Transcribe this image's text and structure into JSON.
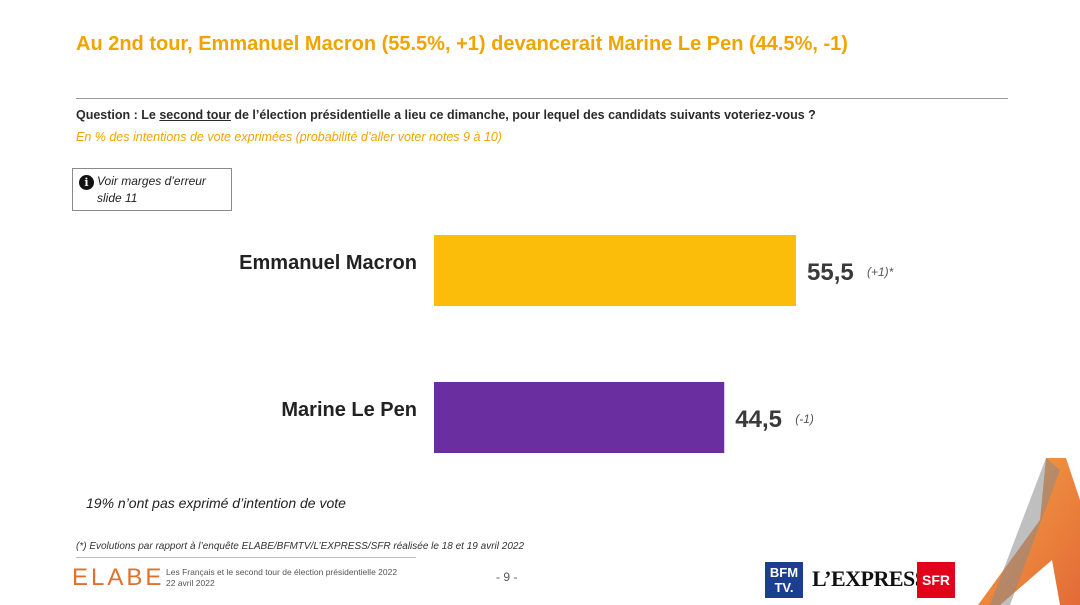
{
  "title": "Au 2nd tour, Emmanuel Macron (55.5%, +1) devancerait Marine Le Pen (44.5%, -1)",
  "question": {
    "prefix": "Question : Le ",
    "underlined": "second tour",
    "suffix": " de l’élection présidentielle a lieu ce dimanche, pour lequel des candidats suivants voteriez-vous ?",
    "subtitle": "En % des intentions de vote exprimées (probabilité d’aller voter notes 9 à 10)"
  },
  "note": {
    "icon": "info-icon",
    "line1": "Voir marges d’erreur",
    "line2": "slide 11"
  },
  "chart_data": {
    "type": "bar",
    "orientation": "horizontal",
    "categories": [
      "Emmanuel Macron",
      "Marine Le Pen"
    ],
    "values": [
      55.5,
      44.5
    ],
    "value_labels": [
      "55,5",
      "44,5"
    ],
    "evolutions": [
      "(+1)*",
      "(-1)"
    ],
    "colors": [
      "#fbbd0a",
      "#6a2ea0"
    ],
    "xlim": [
      0,
      100
    ],
    "title": "",
    "xlabel": "",
    "ylabel": "",
    "grid": false
  },
  "non_expressed": "19% n’ont pas exprimé d’intention de vote",
  "footnote": "(*) Evolutions par rapport à l’enquête ELABE/BFMTV/L’EXPRESS/SFR réalisée le 18 et 19 avril 2022",
  "footer": {
    "brand": "ELABE",
    "desc_line1": "Les Français et le second tour de élection présidentielle 2022",
    "desc_line2": "22 avril 2022",
    "page": "- 9 -",
    "logos": {
      "bfm_line1": "BFM",
      "bfm_line2": "TV.",
      "lexpress": "L’EXPRESS",
      "sfr": "SFR"
    }
  },
  "accent_color": "#f0a400"
}
